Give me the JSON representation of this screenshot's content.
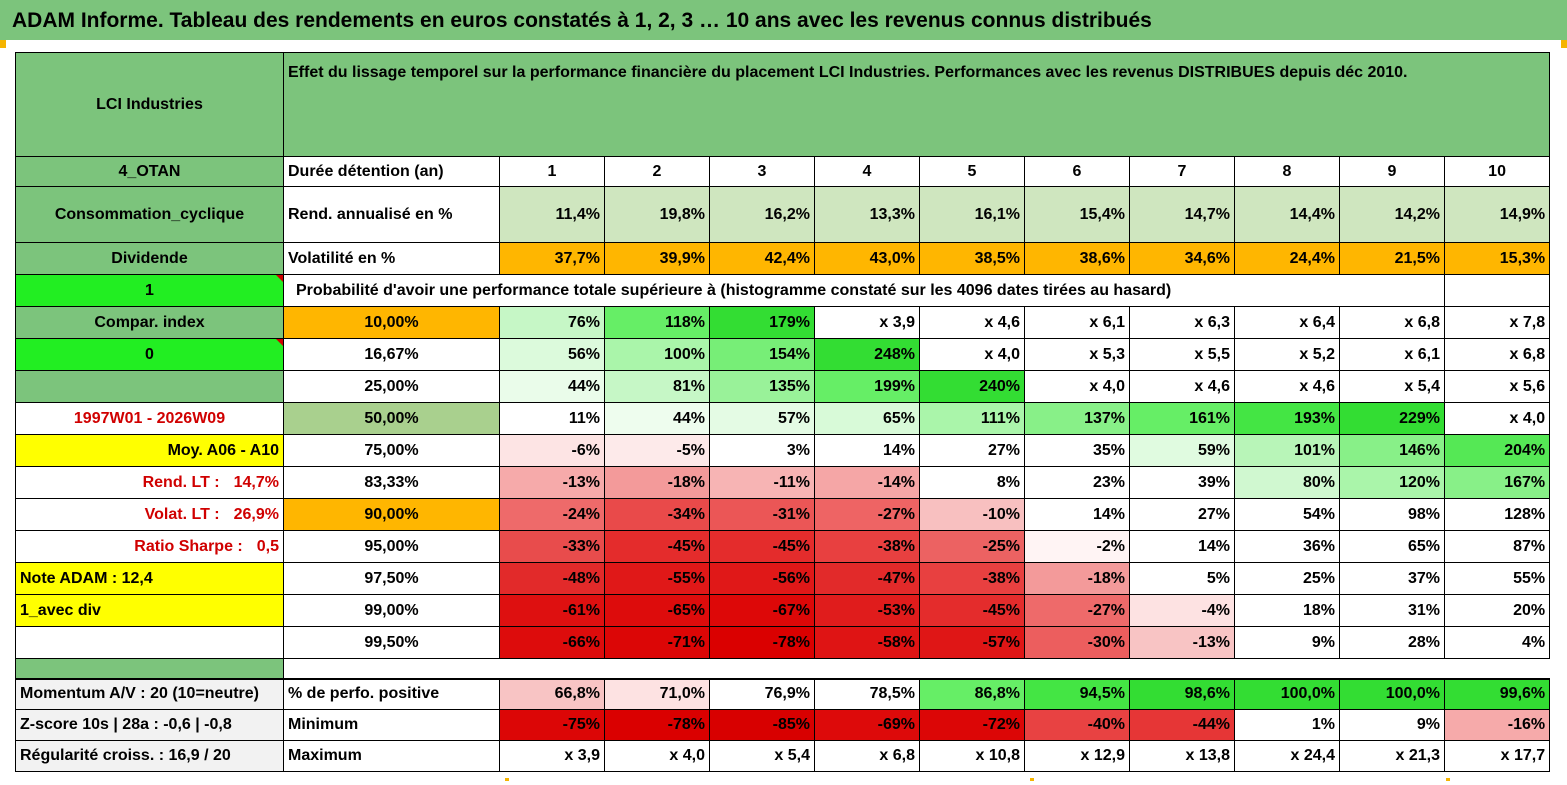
{
  "title": "ADAM Informe. Tableau des rendements en euros constatés à 1, 2, 3 … 10 ans avec les revenus connus distribués",
  "company": "LCI Industries",
  "description": "Effet du lissage temporel sur la performance financière du placement LCI Industries. Performances avec les revenus DISTRIBUES depuis déc 2010.",
  "side": {
    "otan": "4_OTAN",
    "sector": "Consommation_cyclique",
    "type": "Dividende",
    "one": "1",
    "compar_index": "Compar. index",
    "zero": "0",
    "period": "1997W01 - 2026W09",
    "moy": "Moy. A06 - A10",
    "rend_label": "Rend. LT :",
    "rend_value": "14,7%",
    "volat_label": "Volat. LT :",
    "volat_value": "26,9%",
    "sharpe_label": "Ratio Sharpe :",
    "sharpe_value": "0,5",
    "note": "Note ADAM : 12,4",
    "avec_div": "1_avec div",
    "momentum": "Momentum A/V : 20 (10=neutre)",
    "zscore": "Z-score 10s | 28a : -0,6 | -0,8",
    "regularite": "Régularité croiss. : 16,9 / 20"
  },
  "labels": {
    "duree": "Durée détention (an)",
    "rend": "Rend. annualisé en %",
    "volat": "Volatilité en %",
    "proba": "Probabilité d'avoir une performance totale supérieure à (histogramme constaté sur les 4096 dates tirées au hasard)",
    "perfo_pos": "% de perfo. positive",
    "minimum": "Minimum",
    "maximum": "Maximum"
  },
  "years": [
    "1",
    "2",
    "3",
    "4",
    "5",
    "6",
    "7",
    "8",
    "9",
    "10"
  ],
  "rend": [
    "11,4%",
    "19,8%",
    "16,2%",
    "13,3%",
    "16,1%",
    "15,4%",
    "14,7%",
    "14,4%",
    "14,2%",
    "14,9%"
  ],
  "volat": [
    "37,7%",
    "39,9%",
    "42,4%",
    "43,0%",
    "38,5%",
    "38,6%",
    "34,6%",
    "24,4%",
    "21,5%",
    "15,3%"
  ],
  "proba_rows": [
    {
      "pct": "10,00%",
      "values": [
        "76%",
        "118%",
        "179%",
        "x 3,9",
        "x 4,6",
        "x 6,1",
        "x 6,3",
        "x 6,4",
        "x 6,8",
        "x 7,8"
      ],
      "colors": [
        "#c6f7c6",
        "#66ee66",
        "#33dd33",
        "#ffffff",
        "#ffffff",
        "#ffffff",
        "#ffffff",
        "#ffffff",
        "#ffffff",
        "#ffffff"
      ]
    },
    {
      "pct": "16,67%",
      "values": [
        "56%",
        "100%",
        "154%",
        "248%",
        "x 4,0",
        "x 5,3",
        "x 5,5",
        "x 5,2",
        "x 6,1",
        "x 6,8"
      ],
      "colors": [
        "#dcfadc",
        "#aaf5aa",
        "#77ee77",
        "#33dd33",
        "#ffffff",
        "#ffffff",
        "#ffffff",
        "#ffffff",
        "#ffffff",
        "#ffffff"
      ]
    },
    {
      "pct": "25,00%",
      "values": [
        "44%",
        "81%",
        "135%",
        "199%",
        "240%",
        "x 4,0",
        "x 4,6",
        "x 4,6",
        "x 5,4",
        "x 5,6"
      ],
      "colors": [
        "#eafcea",
        "#c6f7c6",
        "#99f299",
        "#66ee66",
        "#33dd33",
        "#ffffff",
        "#ffffff",
        "#ffffff",
        "#ffffff",
        "#ffffff"
      ]
    },
    {
      "pct": "50,00%",
      "values": [
        "11%",
        "44%",
        "57%",
        "65%",
        "111%",
        "137%",
        "161%",
        "193%",
        "229%",
        "x 4,0"
      ],
      "colors": [
        "#ffffff",
        "#eefdee",
        "#e4fbe4",
        "#d8fad8",
        "#aaf5aa",
        "#88f088",
        "#66ee66",
        "#44e544",
        "#33dd33",
        "#ffffff"
      ]
    },
    {
      "pct": "75,00%",
      "values": [
        "-6%",
        "-5%",
        "3%",
        "14%",
        "27%",
        "35%",
        "59%",
        "101%",
        "146%",
        "204%"
      ],
      "colors": [
        "#fde4e4",
        "#fdeaea",
        "#ffffff",
        "#ffffff",
        "#ffffff",
        "#ffffff",
        "#e0fbe0",
        "#b8f5b8",
        "#88f088",
        "#55e855"
      ]
    },
    {
      "pct": "83,33%",
      "values": [
        "-13%",
        "-18%",
        "-11%",
        "-14%",
        "8%",
        "23%",
        "39%",
        "80%",
        "120%",
        "167%"
      ],
      "colors": [
        "#f6aaaa",
        "#f39a9a",
        "#f7b4b4",
        "#f5a6a6",
        "#ffffff",
        "#ffffff",
        "#ffffff",
        "#d0f8d0",
        "#aaf5aa",
        "#88f088"
      ]
    },
    {
      "pct": "90,00%",
      "values": [
        "-24%",
        "-34%",
        "-31%",
        "-27%",
        "-10%",
        "14%",
        "27%",
        "54%",
        "98%",
        "128%"
      ],
      "colors": [
        "#ee6a6a",
        "#e94a4a",
        "#eb5656",
        "#ee6464",
        "#f8c0c0",
        "#ffffff",
        "#ffffff",
        "#ffffff",
        "#ffffff",
        "#ffffff"
      ]
    },
    {
      "pct": "95,00%",
      "values": [
        "-33%",
        "-45%",
        "-45%",
        "-38%",
        "-25%",
        "-2%",
        "14%",
        "36%",
        "65%",
        "87%"
      ],
      "colors": [
        "#e84c4c",
        "#e42c2c",
        "#e42c2c",
        "#e84040",
        "#ec6262",
        "#fff4f4",
        "#ffffff",
        "#ffffff",
        "#ffffff",
        "#ffffff"
      ]
    },
    {
      "pct": "97,50%",
      "values": [
        "-48%",
        "-55%",
        "-56%",
        "-47%",
        "-38%",
        "-18%",
        "5%",
        "25%",
        "37%",
        "55%"
      ],
      "colors": [
        "#e22a2a",
        "#e01818",
        "#e01818",
        "#e22a2a",
        "#e84040",
        "#f39a9a",
        "#ffffff",
        "#ffffff",
        "#ffffff",
        "#ffffff"
      ]
    },
    {
      "pct": "99,00%",
      "values": [
        "-61%",
        "-65%",
        "-67%",
        "-53%",
        "-45%",
        "-27%",
        "-4%",
        "18%",
        "31%",
        "20%"
      ],
      "colors": [
        "#de1010",
        "#dd0c0c",
        "#dd0808",
        "#e01c1c",
        "#e42c2c",
        "#ee6a6a",
        "#fde2e2",
        "#ffffff",
        "#ffffff",
        "#ffffff"
      ]
    },
    {
      "pct": "99,50%",
      "values": [
        "-66%",
        "-71%",
        "-78%",
        "-58%",
        "-57%",
        "-30%",
        "-13%",
        "9%",
        "28%",
        "4%"
      ],
      "colors": [
        "#dd0c0c",
        "#dc0606",
        "#da0000",
        "#df1414",
        "#df1616",
        "#ec5e5e",
        "#f8c4c4",
        "#ffffff",
        "#ffffff",
        "#ffffff"
      ]
    }
  ],
  "perfo_pos": {
    "values": [
      "66,8%",
      "71,0%",
      "76,9%",
      "78,5%",
      "86,8%",
      "94,5%",
      "98,6%",
      "100,0%",
      "100,0%",
      "99,6%"
    ],
    "colors": [
      "#f8c4c4",
      "#fde2e2",
      "#ffffff",
      "#ffffff",
      "#66ee66",
      "#44e544",
      "#33dd33",
      "#33dd33",
      "#33dd33",
      "#33dd33"
    ]
  },
  "minimum": {
    "values": [
      "-75%",
      "-78%",
      "-85%",
      "-69%",
      "-72%",
      "-40%",
      "-44%",
      "1%",
      "9%",
      "-16%"
    ],
    "colors": [
      "#dc0606",
      "#da0000",
      "#d80000",
      "#dd0a0a",
      "#dc0606",
      "#e84242",
      "#e63636",
      "#ffffff",
      "#ffffff",
      "#f6aaaa"
    ]
  },
  "maximum": [
    "x 3,9",
    "x 4,0",
    "x 5,4",
    "x 6,8",
    "x 10,8",
    "x 12,9",
    "x 13,8",
    "x 24,4",
    "x 21,3",
    "x 17,7"
  ],
  "colors": {
    "header_green": "#7cc47c",
    "rend_bg": "#cfe6bf",
    "volat_bg": "#ffb600",
    "bright_green": "#22ee22",
    "yellow": "#ffff00",
    "median_bg": "#a9d08e",
    "red_text": "#d00000"
  }
}
